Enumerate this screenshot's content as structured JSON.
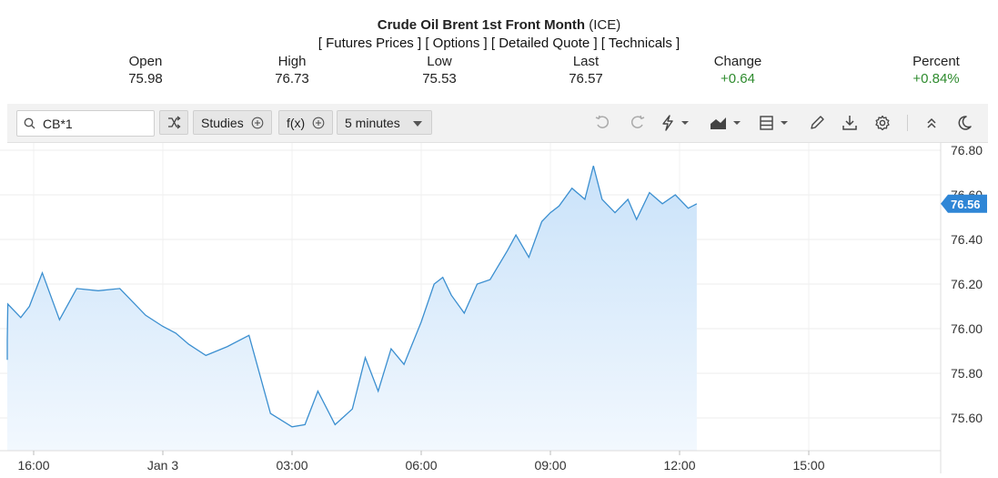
{
  "header": {
    "title_main": "Crude Oil Brent 1st Front Month",
    "title_suffix": "(ICE)",
    "links": [
      "[ Futures Prices ]",
      "[ Options ]",
      "[ Detailed Quote ]",
      "[ Technicals ]"
    ]
  },
  "quote": {
    "open_label": "Open",
    "open": "75.98",
    "high_label": "High",
    "high": "76.73",
    "low_label": "Low",
    "low": "75.53",
    "last_label": "Last",
    "last": "76.57",
    "change_label": "Change",
    "change": "+0.64",
    "percent_label": "Percent",
    "percent": "+0.84%"
  },
  "toolbar": {
    "symbol_value": "CB*1",
    "studies_label": "Studies",
    "fx_label": "f(x)",
    "interval_label": "5 minutes",
    "icons": [
      "search-icon",
      "shuffle-icon",
      "plus-circle-icon",
      "chevron-down-icon",
      "undo-icon",
      "redo-icon",
      "lightning-icon",
      "chart-type-icon",
      "layout-icon",
      "pencil-icon",
      "download-icon",
      "gear-icon",
      "collapse-icon",
      "moon-icon"
    ]
  },
  "colors": {
    "line": "#3b8fd0",
    "fill_top": "#c9e2f9",
    "fill_bottom": "#f2f8fe",
    "price_tag": "#2f86d6",
    "positive": "#2e8b2e"
  },
  "chart_data": {
    "type": "area",
    "x_tick_labels": [
      "16:00",
      "Jan 3",
      "03:00",
      "06:00",
      "09:00",
      "12:00",
      "15:00"
    ],
    "y_tick_labels": [
      "76.80",
      "76.60",
      "76.40",
      "76.20",
      "76.00",
      "75.80",
      "75.60"
    ],
    "ylim": [
      75.45,
      76.85
    ],
    "last_price_label": "76.56",
    "grid": true,
    "series": [
      {
        "x": [
          -1.85,
          -1.6,
          -1.2,
          -1.0,
          -0.6,
          -0.3,
          -0.1,
          0.2,
          0.6,
          1.0,
          1.5,
          2.0,
          2.6,
          3.0,
          3.3,
          3.6,
          4.0,
          4.5,
          5.0,
          5.5,
          6.0,
          6.3,
          6.6,
          7.0,
          7.4,
          7.7,
          8.0,
          8.3,
          8.6,
          9.0,
          9.3,
          9.5,
          9.7,
          10.0,
          10.3,
          10.6,
          11.0,
          11.2,
          11.5,
          11.8,
          12.0,
          12.2,
          12.5,
          12.8,
          13.0,
          13.2,
          13.5,
          13.8,
          14.0,
          14.3,
          14.6,
          14.9,
          15.2,
          15.4
        ],
        "values": [
          75.9,
          75.89,
          75.86,
          75.95,
          76.11,
          76.05,
          76.1,
          76.25,
          76.04,
          76.18,
          76.17,
          76.18,
          76.06,
          76.01,
          75.98,
          75.93,
          75.88,
          75.92,
          75.97,
          75.62,
          75.56,
          75.57,
          75.72,
          75.57,
          75.64,
          75.87,
          75.72,
          75.91,
          75.84,
          76.03,
          76.2,
          76.23,
          76.15,
          76.07,
          76.2,
          76.22,
          76.35,
          76.42,
          76.32,
          76.48,
          76.52,
          76.55,
          76.63,
          76.58,
          76.73,
          76.58,
          76.52,
          76.58,
          76.49,
          76.61,
          76.56,
          76.6,
          76.54,
          76.56
        ]
      }
    ]
  }
}
